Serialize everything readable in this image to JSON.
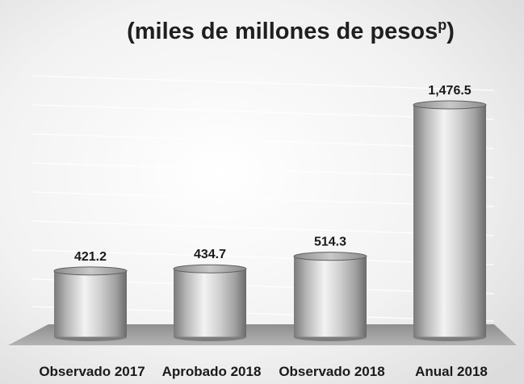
{
  "chart_data": {
    "type": "bar",
    "title": "(miles de millones de pesos",
    "title_superscript": "p",
    "title_suffix": ")",
    "categories": [
      "Observado 2017",
      "Aprobado 2018",
      "Observado 2018",
      "Anual 2018"
    ],
    "values": [
      421.2,
      434.7,
      514.3,
      1476.5
    ],
    "value_labels": [
      "421.2",
      "434.7",
      "514.3",
      "1,476.5"
    ],
    "xlabel": "",
    "ylabel": "",
    "grid": true,
    "legend": "none",
    "bar_style": "3d cylinder",
    "colors": {
      "bar_light": "#f2f2f2",
      "bar_mid": "#b5b5b5",
      "bar_dark": "#6e6e6e",
      "floor": "#9a9a9a",
      "background": "#e9e9e9"
    }
  }
}
